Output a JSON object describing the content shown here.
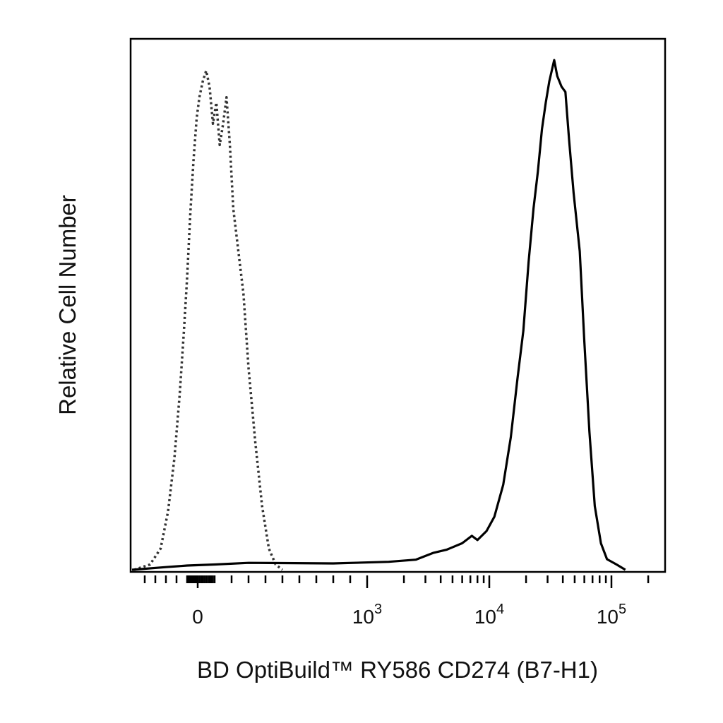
{
  "chart_data": {
    "type": "line",
    "title": "",
    "xlabel": "BD OptiBuild™ RY586 CD274 (B7-H1)",
    "ylabel": "Relative Cell Number",
    "x_scale": "biexponential",
    "x_tick_labels": [
      {
        "base": "0",
        "exp": "",
        "value": 0
      },
      {
        "base": "10",
        "exp": "3",
        "value": 1000
      },
      {
        "base": "10",
        "exp": "4",
        "value": 10000
      },
      {
        "base": "10",
        "exp": "5",
        "value": 100000
      }
    ],
    "ylim": [
      0,
      100
    ],
    "grid": false,
    "series": [
      {
        "style": "dotted",
        "color": "#333333",
        "points": [
          [
            -600,
            0
          ],
          [
            -450,
            1
          ],
          [
            -350,
            4
          ],
          [
            -280,
            11
          ],
          [
            -220,
            21
          ],
          [
            -170,
            33
          ],
          [
            -130,
            45
          ],
          [
            -100,
            55
          ],
          [
            -70,
            67
          ],
          [
            -40,
            77
          ],
          [
            -10,
            85
          ],
          [
            10,
            89
          ],
          [
            30,
            92
          ],
          [
            50,
            94
          ],
          [
            70,
            91
          ],
          [
            90,
            84
          ],
          [
            110,
            88
          ],
          [
            130,
            80
          ],
          [
            150,
            84
          ],
          [
            170,
            89
          ],
          [
            190,
            80
          ],
          [
            210,
            68
          ],
          [
            240,
            60
          ],
          [
            270,
            52
          ],
          [
            300,
            38
          ],
          [
            340,
            24
          ],
          [
            380,
            12
          ],
          [
            420,
            4
          ],
          [
            460,
            1
          ],
          [
            500,
            0
          ]
        ]
      },
      {
        "style": "solid",
        "color": "#000000",
        "points": [
          [
            -1000,
            0
          ],
          [
            -300,
            0.5
          ],
          [
            -100,
            0.8
          ],
          [
            100,
            1
          ],
          [
            300,
            1.3
          ],
          [
            800,
            1.2
          ],
          [
            1500,
            1.5
          ],
          [
            2500,
            1.9
          ],
          [
            3500,
            3.2
          ],
          [
            4500,
            3.8
          ],
          [
            6000,
            5
          ],
          [
            7200,
            6.4
          ],
          [
            8000,
            5.6
          ],
          [
            9500,
            7.3
          ],
          [
            11000,
            10
          ],
          [
            13000,
            16
          ],
          [
            15000,
            25
          ],
          [
            17000,
            36
          ],
          [
            19000,
            45
          ],
          [
            21000,
            58
          ],
          [
            23000,
            68
          ],
          [
            25000,
            75
          ],
          [
            27000,
            83
          ],
          [
            29000,
            88
          ],
          [
            31000,
            92
          ],
          [
            34000,
            96
          ],
          [
            36000,
            93
          ],
          [
            39000,
            91
          ],
          [
            42000,
            90
          ],
          [
            45000,
            81
          ],
          [
            49000,
            71
          ],
          [
            55000,
            60
          ],
          [
            60000,
            43
          ],
          [
            66000,
            26
          ],
          [
            73000,
            12
          ],
          [
            82000,
            5
          ],
          [
            92000,
            2
          ],
          [
            110000,
            1
          ],
          [
            130000,
            0
          ]
        ]
      }
    ]
  }
}
